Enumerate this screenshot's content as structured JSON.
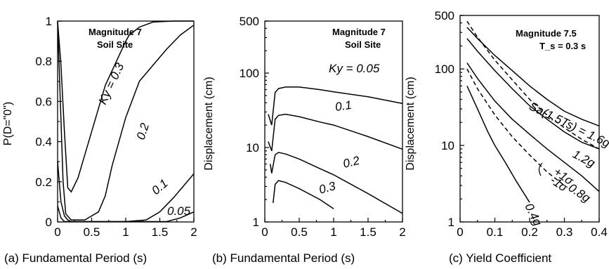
{
  "chart_data": [
    {
      "type": "line",
      "caption": "(a) Fundamental Period (s)",
      "ylabel": "P(D=\"0\")",
      "annotation": [
        "Magnitude 7",
        "Soil Site"
      ],
      "xlim": [
        0,
        2
      ],
      "ylim": [
        0,
        1
      ],
      "yscale": "linear",
      "x_ticks": [
        "0",
        "0.5",
        "1",
        "1.5",
        "2"
      ],
      "y_ticks": [
        "0",
        "0.2",
        "0.4",
        "0.6",
        "0.8",
        "1"
      ],
      "series": [
        {
          "name": "K_y = 0.3",
          "label": "Ky = 0.3",
          "dashed": false,
          "x": [
            0,
            0.05,
            0.1,
            0.15,
            0.2,
            0.3,
            0.5,
            0.7,
            1.0,
            1.05,
            1.2,
            1.4,
            1.7,
            2.0
          ],
          "y": [
            1.0,
            0.78,
            0.45,
            0.17,
            0.15,
            0.22,
            0.45,
            0.68,
            0.9,
            0.93,
            0.97,
            0.995,
            1.0,
            1.0
          ]
        },
        {
          "name": "0.2",
          "label": "0.2",
          "dashed": false,
          "x": [
            0,
            0.04,
            0.08,
            0.12,
            0.2,
            0.4,
            0.6,
            0.7,
            0.8,
            1.0,
            1.2,
            1.4,
            1.6,
            1.8,
            2.0
          ],
          "y": [
            1.0,
            0.6,
            0.2,
            0.04,
            0.01,
            0.01,
            0.05,
            0.13,
            0.28,
            0.52,
            0.7,
            0.78,
            0.86,
            0.93,
            0.98
          ]
        },
        {
          "name": "0.1",
          "label": "0.1",
          "dashed": false,
          "x": [
            0,
            0.05,
            0.1,
            0.15,
            0.2,
            0.5,
            1.0,
            1.3,
            1.5,
            1.7,
            2.0
          ],
          "y": [
            0.3,
            0.1,
            0.03,
            0.01,
            0.0,
            0.0,
            0.0,
            0.01,
            0.05,
            0.12,
            0.24
          ]
        },
        {
          "name": "0.05",
          "label": "0.05",
          "dashed": false,
          "x": [
            0,
            0.05,
            0.1,
            0.15,
            0.2,
            1.0,
            1.4,
            1.6,
            1.8,
            2.0
          ],
          "y": [
            0.08,
            0.02,
            0.0,
            0.0,
            0.0,
            0.0,
            0.0,
            0.0,
            0.02,
            0.05
          ]
        }
      ]
    },
    {
      "type": "line",
      "caption": "(b)  Fundamental Period (s)",
      "ylabel": "Displacement (cm)",
      "annotation": [
        "Magnitude 7",
        "Soil Site"
      ],
      "xlim": [
        0,
        2
      ],
      "ylim": [
        1,
        500
      ],
      "yscale": "log",
      "x_ticks": [
        "0",
        "0.5",
        "1",
        "1.5",
        "2"
      ],
      "y_ticks": [
        "1",
        "10",
        "100",
        "500"
      ],
      "series": [
        {
          "name": "K_y = 0.05",
          "label": "Ky = 0.05",
          "dashed": false,
          "x": [
            0.05,
            0.1,
            0.15,
            0.2,
            0.3,
            0.5,
            0.8,
            1.0,
            1.5,
            2.0
          ],
          "y": [
            28,
            20,
            55,
            62,
            65,
            65,
            60,
            56,
            48,
            39
          ]
        },
        {
          "name": "0.1",
          "label": "0.1",
          "dashed": false,
          "x": [
            0.05,
            0.1,
            0.15,
            0.2,
            0.3,
            0.5,
            0.8,
            1.0,
            1.5,
            2.0
          ],
          "y": [
            12,
            9,
            24,
            27,
            28,
            26,
            22,
            20,
            14,
            9.5
          ]
        },
        {
          "name": "0.2",
          "label": "0.2",
          "dashed": false,
          "x": [
            0.08,
            0.1,
            0.15,
            0.2,
            0.3,
            0.5,
            0.8,
            1.0,
            1.5,
            2.0
          ],
          "y": [
            6,
            4.5,
            8,
            8.6,
            8.2,
            7,
            5.2,
            4.3,
            2.4,
            1.3
          ]
        },
        {
          "name": "0.3",
          "label": "0.3",
          "dashed": false,
          "x": [
            0.12,
            0.15,
            0.2,
            0.3,
            0.5,
            0.8,
            1.0
          ],
          "y": [
            1.8,
            3.2,
            3.6,
            3.4,
            2.8,
            2.0,
            1.5
          ]
        }
      ]
    },
    {
      "type": "line",
      "caption": "(c)  Yield Coefficient",
      "ylabel": "Displacement (cm)",
      "annotation": [
        "Magnitude 7.5",
        "T_s = 0.3 s"
      ],
      "xlim": [
        0,
        0.4
      ],
      "ylim": [
        1,
        500
      ],
      "yscale": "log",
      "x_ticks": [
        "0",
        "0.1",
        "0.2",
        "0.3",
        "0.4"
      ],
      "y_ticks": [
        "1",
        "10",
        "100",
        "500"
      ],
      "series": [
        {
          "name": "Sa(1.5Ts) = 1.6g",
          "label": "Sa(1.5Ts) = 1.6g",
          "dashed": false,
          "x": [
            0.02,
            0.05,
            0.1,
            0.15,
            0.2,
            0.25,
            0.3,
            0.35,
            0.4
          ],
          "y": [
            350,
            250,
            150,
            95,
            60,
            40,
            28,
            22,
            18
          ]
        },
        {
          "name": "1.2g",
          "label": "1.2g",
          "dashed": false,
          "x": [
            0.02,
            0.05,
            0.1,
            0.15,
            0.2,
            0.25,
            0.3,
            0.35,
            0.4
          ],
          "y": [
            250,
            170,
            95,
            55,
            33,
            22,
            15,
            11,
            9
          ]
        },
        {
          "name": "0.8g",
          "label": "0.8g",
          "dashed": false,
          "x": [
            0.02,
            0.05,
            0.1,
            0.15,
            0.2,
            0.25,
            0.3,
            0.35,
            0.4
          ],
          "y": [
            120,
            75,
            38,
            22,
            14,
            9,
            6,
            4,
            2.5
          ]
        },
        {
          "name": "0.4g",
          "label": "0.4g",
          "dashed": false,
          "x": [
            0.02,
            0.05,
            0.08,
            0.1,
            0.13,
            0.16,
            0.2
          ],
          "y": [
            60,
            30,
            15,
            10,
            6,
            3.5,
            1.8
          ]
        },
        {
          "name": "+1σ",
          "label": "+1σ",
          "dashed": true,
          "x": [
            0.02,
            0.05,
            0.1,
            0.15,
            0.2,
            0.25,
            0.3,
            0.35,
            0.4
          ],
          "y": [
            420,
            260,
            130,
            72,
            40,
            25,
            17,
            12,
            9
          ]
        },
        {
          "name": "-1σ",
          "label": "-1σ",
          "dashed": true,
          "x": [
            0.02,
            0.05,
            0.1,
            0.15,
            0.2,
            0.25,
            0.3
          ],
          "y": [
            100,
            55,
            25,
            13,
            7.5,
            4.5,
            3.0
          ]
        }
      ]
    }
  ]
}
